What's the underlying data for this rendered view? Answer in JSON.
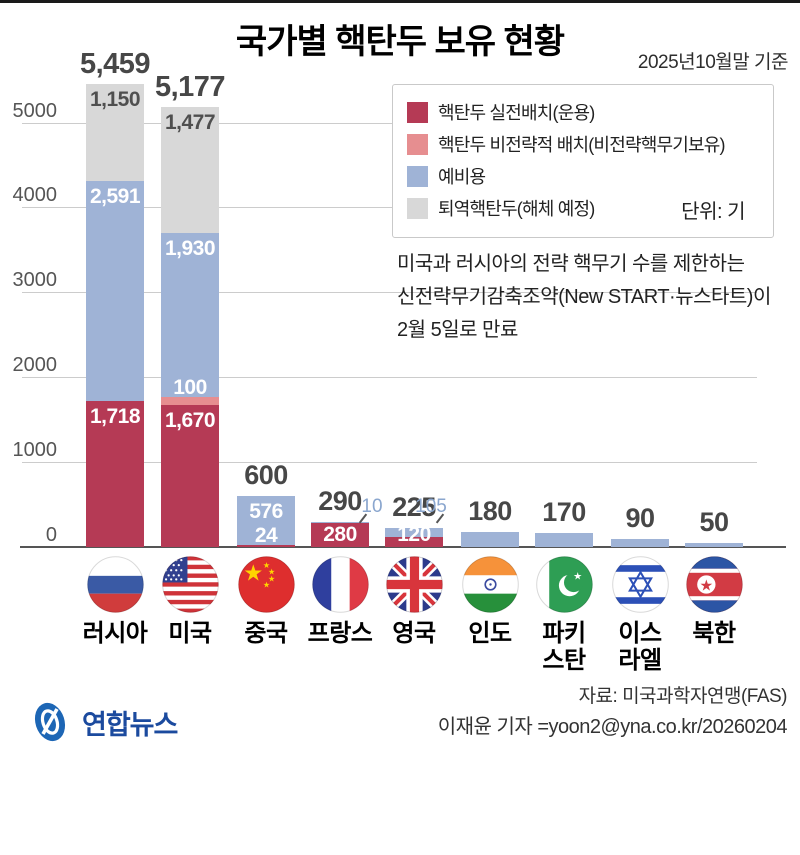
{
  "header": {
    "title": "국가별 핵탄두 보유 현황",
    "date_note": "2025년10월말 기준"
  },
  "legend": {
    "items": [
      {
        "key": "deployed",
        "label": "핵탄두 실전배치(운용)",
        "color": "#b53a55"
      },
      {
        "key": "nonstrategic",
        "label": "핵탄두 비전략적 배치(비전략핵무기보유)",
        "color": "#e68e90"
      },
      {
        "key": "reserve",
        "label": "예비용",
        "color": "#9fb3d6"
      },
      {
        "key": "retired",
        "label": "퇴역핵탄두(해체 예정)",
        "color": "#d8d8d8"
      }
    ],
    "unit_label": "단위: 기"
  },
  "note": {
    "lines": [
      "미국과 러시아의 전략 핵무기 수를 제한하는",
      "신전략무기감축조약(New START·뉴스타트)이",
      "2월 5일로 만료"
    ]
  },
  "chart_data": {
    "type": "bar",
    "stacked": true,
    "title": "국가별 핵탄두 보유 현황",
    "unit": "기",
    "grid": true,
    "legend_position": "top-right",
    "ylim": [
      0,
      5500
    ],
    "yticks": [
      0,
      1000,
      2000,
      3000,
      4000,
      5000
    ],
    "categories": [
      "러시아",
      "미국",
      "중국",
      "프랑스",
      "영국",
      "인도",
      "파키스탄",
      "이스라엘",
      "북한"
    ],
    "category_display_lines": [
      [
        "러시아"
      ],
      [
        "미국"
      ],
      [
        "중국"
      ],
      [
        "프랑스"
      ],
      [
        "영국"
      ],
      [
        "인도"
      ],
      [
        "파키",
        "스탄"
      ],
      [
        "이스",
        "라엘"
      ],
      [
        "북한"
      ]
    ],
    "series": [
      {
        "key": "deployed",
        "name": "핵탄두 실전배치(운용)",
        "color": "#b53a55",
        "values": [
          1718,
          1670,
          24,
          280,
          120,
          null,
          null,
          null,
          null
        ]
      },
      {
        "key": "nonstrategic",
        "name": "핵탄두 비전략적 배치(비전략핵무기보유)",
        "color": "#e68e90",
        "values": [
          null,
          100,
          null,
          null,
          null,
          null,
          null,
          null,
          null
        ]
      },
      {
        "key": "reserve",
        "name": "예비용",
        "color": "#9fb3d6",
        "values": [
          2591,
          1930,
          576,
          10,
          105,
          180,
          170,
          90,
          50
        ]
      },
      {
        "key": "retired",
        "name": "퇴역핵탄두(해체 예정)",
        "color": "#d8d8d8",
        "values": [
          1150,
          1477,
          null,
          null,
          null,
          null,
          null,
          null,
          null
        ]
      }
    ],
    "totals": [
      5459,
      5177,
      600,
      290,
      225,
      180,
      170,
      90,
      50
    ],
    "totals_display": [
      "5,459",
      "5,177",
      "600",
      "290",
      "225",
      "180",
      "170",
      "90",
      "50"
    ],
    "segment_labels": [
      {
        "bar": 0,
        "series": "retired",
        "text": "1,150",
        "tone": "dark"
      },
      {
        "bar": 0,
        "series": "reserve",
        "text": "2,591",
        "tone": "light"
      },
      {
        "bar": 0,
        "series": "deployed",
        "text": "1,718",
        "tone": "light"
      },
      {
        "bar": 1,
        "series": "retired",
        "text": "1,477",
        "tone": "dark"
      },
      {
        "bar": 1,
        "series": "reserve",
        "text": "1,930",
        "tone": "light"
      },
      {
        "bar": 1,
        "series": "nonstrategic",
        "text": "100",
        "tone": "light",
        "above": true
      },
      {
        "bar": 1,
        "series": "deployed",
        "text": "1,670",
        "tone": "light"
      },
      {
        "bar": 2,
        "series": "reserve",
        "text": "576",
        "tone": "light"
      },
      {
        "bar": 2,
        "series": "deployed",
        "text": "24",
        "tone": "light",
        "above": true
      },
      {
        "bar": 3,
        "series": "deployed",
        "text": "280",
        "tone": "light"
      },
      {
        "bar": 4,
        "series": "deployed",
        "text": "120",
        "tone": "light"
      }
    ],
    "annotations": [
      {
        "bar": 3,
        "text": "10"
      },
      {
        "bar": 4,
        "text": "105"
      }
    ]
  },
  "footer": {
    "source": "자료: 미국과학자연맹(FAS)",
    "credit": "이재윤 기자 =yoon2@yna.co.kr/20260204",
    "logo_text": "연합뉴스"
  }
}
